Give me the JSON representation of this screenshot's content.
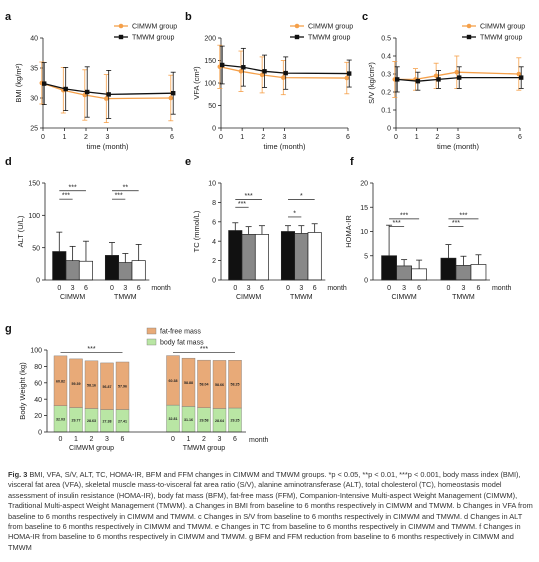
{
  "caption": {
    "label": "Fig. 3",
    "text": "BMI, VFA, S/V, ALT, TC, HOMA-IR, BFM and FFM changes in CIMWM and TMWM groups. *p < 0.05, **p < 0.01, ***p < 0.001, body mass index (BMI), visceral fat area (VFA), skeletal muscle mass-to-visceral fat area ratio (S/V), alanine aminotransferase (ALT), total cholesterol (TC), homeostasis model assessment of insulin resistance (HOMA-IR), body fat mass (BFM), fat-free mass (FFM), Companion-Intensive Multi-aspect Weight Management (CIMWM), Traditional Multi-aspect Weight Management (TMWM). a Changes in BMI from baseline to 6 months respectively in CIMWM and TMWM. b Changes in VFA from baseline to 6 months respectively in CIMWM and TMWM. c Changes in S/V from baseline to 6 months respectively in CIMWM and TMWM. d Changes in ALT from baseline to 6 months respectively in CIMWM and TMWM. e Changes in TC from baseline to 6 months respectively in CIMWM and TMWM. f Changes in HOMA-IR from baseline to 6 months respectively in CIMWM and TMWM. g BFM and FFM reduction from baseline to 6 months respectively in CIMWM and TMWM"
  },
  "colors": {
    "cimwm": "#f5a04a",
    "tmwm": "#111111",
    "fat_free": "#e8aa78",
    "fat": "#b9e6a4",
    "bar_black": "#111111",
    "bar_gray": "#888888",
    "bar_white": "#ffffff"
  },
  "chart_data": [
    {
      "panel": "a",
      "type": "line",
      "ylabel": "BMI (kg/m²)",
      "xlabel": "time (month)",
      "x": [
        0,
        1,
        2,
        3,
        6
      ],
      "xticks": [
        0,
        1,
        2,
        3,
        6
      ],
      "ylim": [
        25,
        40
      ],
      "yticks": [
        25,
        30,
        35,
        40
      ],
      "legend": "top-right",
      "series": [
        {
          "name": "CIMWM group",
          "values": [
            32.5,
            31.3,
            30.5,
            29.9,
            30.0
          ],
          "err": [
            3.5,
            3.8,
            4.2,
            4.0,
            3.8
          ]
        },
        {
          "name": "TMWM group",
          "values": [
            32.4,
            31.5,
            31.0,
            30.6,
            30.8
          ],
          "err": [
            3.5,
            3.6,
            4.2,
            4.0,
            3.5
          ]
        }
      ]
    },
    {
      "panel": "b",
      "type": "line",
      "ylabel": "VFA (cm²)",
      "xlabel": "time (month)",
      "x": [
        0,
        1,
        2,
        3,
        6
      ],
      "xticks": [
        0,
        1,
        2,
        3,
        6
      ],
      "ylim": [
        0,
        200
      ],
      "yticks": [
        0,
        50,
        100,
        150,
        200
      ],
      "legend": "top-right",
      "series": [
        {
          "name": "CIMWM group",
          "values": [
            136,
            126,
            118,
            112,
            111
          ],
          "err": [
            48,
            45,
            40,
            38,
            35
          ]
        },
        {
          "name": "TMWM group",
          "values": [
            140,
            135,
            126,
            122,
            121
          ],
          "err": [
            42,
            42,
            36,
            36,
            30
          ]
        }
      ]
    },
    {
      "panel": "c",
      "type": "line",
      "ylabel": "S/V (kg/cm²)",
      "xlabel": "time (month)",
      "x": [
        0,
        1,
        2,
        3,
        6
      ],
      "xticks": [
        0,
        1,
        2,
        3,
        6
      ],
      "ylim": [
        0.0,
        0.5
      ],
      "yticks": [
        0.0,
        0.1,
        0.2,
        0.3,
        0.4,
        0.5
      ],
      "legend": "top-right",
      "series": [
        {
          "name": "CIMWM group",
          "values": [
            0.27,
            0.27,
            0.29,
            0.31,
            0.3
          ],
          "err": [
            0.1,
            0.06,
            0.07,
            0.09,
            0.09
          ]
        },
        {
          "name": "TMWM group",
          "values": [
            0.27,
            0.26,
            0.27,
            0.28,
            0.28
          ],
          "err": [
            0.07,
            0.05,
            0.05,
            0.06,
            0.06
          ]
        }
      ]
    },
    {
      "panel": "d",
      "type": "bar",
      "ylabel": "ALT (U/L)",
      "xlabel": "month",
      "groups": [
        "CIMWM",
        "TMWM"
      ],
      "categories": [
        "0",
        "3",
        "6"
      ],
      "ylim": [
        0,
        150
      ],
      "yticks": [
        0,
        50,
        100,
        150
      ],
      "values": [
        [
          44,
          30,
          29
        ],
        [
          38,
          27,
          30
        ]
      ],
      "err": [
        [
          30,
          22,
          31
        ],
        [
          20,
          14,
          25
        ]
      ],
      "significance": [
        {
          "group": 0,
          "from": 0,
          "to": 2,
          "label": "***",
          "y": 138
        },
        {
          "group": 0,
          "from": 0,
          "to": 1,
          "label": "***",
          "y": 125
        },
        {
          "group": 1,
          "from": 0,
          "to": 2,
          "label": "**",
          "y": 138
        },
        {
          "group": 1,
          "from": 0,
          "to": 1,
          "label": "***",
          "y": 125
        }
      ]
    },
    {
      "panel": "e",
      "type": "bar",
      "ylabel": "TC (mmol/L)",
      "xlabel": "month",
      "groups": [
        "CIMWM",
        "TMWM"
      ],
      "categories": [
        "0",
        "3",
        "6"
      ],
      "ylim": [
        0,
        10
      ],
      "yticks": [
        0,
        2,
        4,
        6,
        8,
        10
      ],
      "values": [
        [
          5.1,
          4.7,
          4.7
        ],
        [
          5.0,
          4.8,
          4.9
        ]
      ],
      "err": [
        [
          0.8,
          0.8,
          0.9
        ],
        [
          0.6,
          0.8,
          0.9
        ]
      ],
      "significance": [
        {
          "group": 0,
          "from": 0,
          "to": 2,
          "label": "***",
          "y": 8.3
        },
        {
          "group": 0,
          "from": 0,
          "to": 1,
          "label": "***",
          "y": 7.5
        },
        {
          "group": 1,
          "from": 0,
          "to": 2,
          "label": "*",
          "y": 8.3
        },
        {
          "group": 1,
          "from": 0,
          "to": 1,
          "label": "*",
          "y": 6.5
        }
      ]
    },
    {
      "panel": "f",
      "type": "bar",
      "ylabel": "HOMA-IR",
      "xlabel": "month",
      "groups": [
        "CIMWM",
        "TMWM"
      ],
      "categories": [
        "0",
        "3",
        "6"
      ],
      "ylim": [
        0,
        20
      ],
      "yticks": [
        0,
        5,
        10,
        15,
        20
      ],
      "values": [
        [
          5.0,
          2.9,
          2.3
        ],
        [
          4.5,
          3.0,
          3.2
        ]
      ],
      "err": [
        [
          6.3,
          1.3,
          1.8
        ],
        [
          2.8,
          1.9,
          2.0
        ]
      ],
      "significance": [
        {
          "group": 0,
          "from": 0,
          "to": 2,
          "label": "***",
          "y": 12.6
        },
        {
          "group": 0,
          "from": 0,
          "to": 1,
          "label": "***",
          "y": 11
        },
        {
          "group": 1,
          "from": 0,
          "to": 2,
          "label": "***",
          "y": 12.6
        },
        {
          "group": 1,
          "from": 0,
          "to": 1,
          "label": "***",
          "y": 11
        }
      ]
    },
    {
      "panel": "g",
      "type": "stacked-bar",
      "ylabel": "Body Weight (kg)",
      "xlabel": "month",
      "groups": [
        "CIMWM group",
        "TMWM group"
      ],
      "categories": [
        "0",
        "1",
        "2",
        "3",
        "6"
      ],
      "ylim": [
        0,
        100
      ],
      "yticks": [
        0,
        20,
        40,
        60,
        80,
        100
      ],
      "legend": "top-center",
      "series": [
        {
          "name": "body fat mass",
          "values": [
            [
              32.03,
              29.77,
              28.63,
              27.38,
              27.41
            ],
            [
              32.81,
              31.16,
              29.58,
              28.64,
              29.25
            ]
          ],
          "labels": [
            [
              "32.03",
              "29.77",
              "28.63",
              "27.38",
              "27.41"
            ],
            [
              "32.81",
              "31.16",
              "29.58",
              "28.64",
              "29.25"
            ]
          ]
        },
        {
          "name": "fat-free mass",
          "values": [
            [
              60.82,
              59.39,
              58.16,
              56.87,
              57.96
            ],
            [
              60.38,
              58.88,
              58.04,
              58.66,
              58.25
            ]
          ],
          "labels": [
            [
              "60.82",
              "59.39",
              "58.16",
              "56.87",
              "57.96"
            ],
            [
              "60.38",
              "58.88",
              "58.04",
              "58.66",
              "58.25"
            ]
          ]
        }
      ],
      "significance": [
        {
          "group": 0,
          "label": "***",
          "y": 97
        },
        {
          "group": 1,
          "label": "***",
          "y": 97
        }
      ]
    }
  ]
}
